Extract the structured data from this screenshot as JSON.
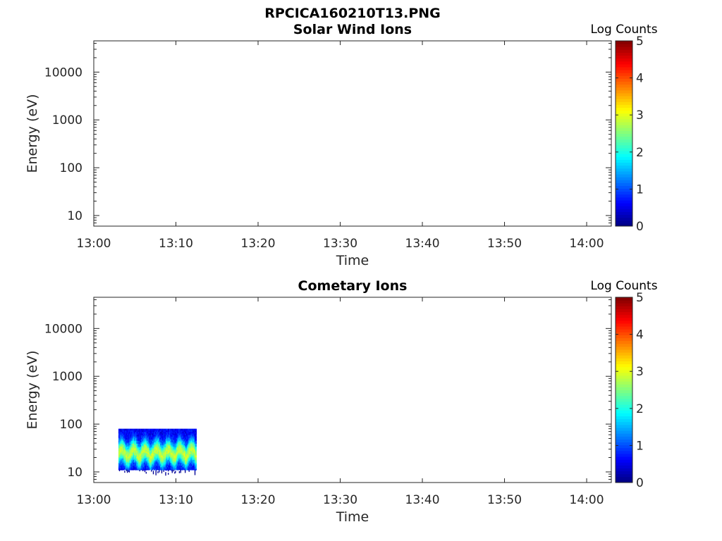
{
  "figure": {
    "title": "RPCICA160210T13.PNG"
  },
  "chart_data": [
    {
      "type": "heatmap",
      "title": "Solar Wind Ions",
      "xlabel": "Time",
      "ylabel": "Energy (eV)",
      "x_ticks": [
        "13:00",
        "13:10",
        "13:20",
        "13:30",
        "13:40",
        "13:50",
        "14:00"
      ],
      "xlim": [
        "13:00",
        "14:03"
      ],
      "y_scale": "log",
      "y_ticks": [
        10,
        100,
        1000,
        10000
      ],
      "y_tick_labels": [
        "10",
        "100",
        "1000",
        "10000"
      ],
      "ylim": [
        6,
        45000
      ],
      "colorbar": {
        "label": "Log Counts",
        "ticks": [
          "0",
          "1",
          "2",
          "3",
          "4",
          "5"
        ],
        "range": [
          0,
          5
        ],
        "colormap": "jet"
      },
      "data_region": null
    },
    {
      "type": "heatmap",
      "title": "Cometary Ions",
      "xlabel": "Time",
      "ylabel": "Energy (eV)",
      "x_ticks": [
        "13:00",
        "13:10",
        "13:20",
        "13:30",
        "13:40",
        "13:50",
        "14:00"
      ],
      "xlim": [
        "13:00",
        "14:03"
      ],
      "y_scale": "log",
      "y_ticks": [
        10,
        100,
        1000,
        10000
      ],
      "y_tick_labels": [
        "10",
        "100",
        "1000",
        "10000"
      ],
      "ylim": [
        6,
        45000
      ],
      "colorbar": {
        "label": "Log Counts",
        "ticks": [
          "0",
          "1",
          "2",
          "3",
          "4",
          "5"
        ],
        "range": [
          0,
          5
        ],
        "colormap": "jet"
      },
      "data_region": {
        "time_start": "13:03",
        "time_end": "13:12.5",
        "energy_min": 11,
        "energy_max": 80,
        "peak_energy": 25,
        "peak_log_counts": 2.3
      }
    }
  ]
}
